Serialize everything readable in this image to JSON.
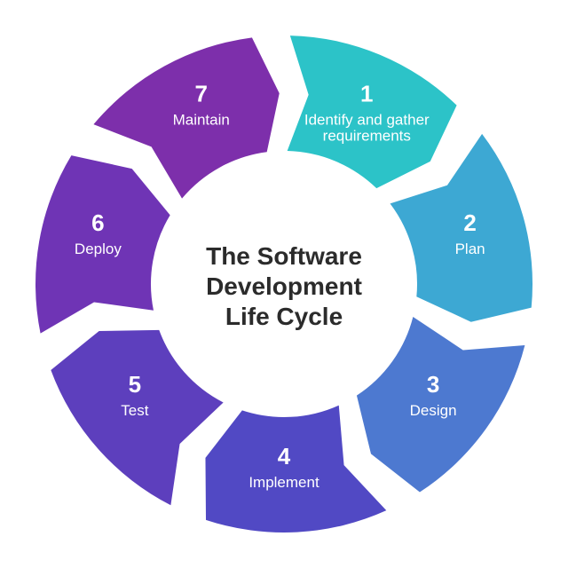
{
  "diagram": {
    "type": "cycle-arrow-ring",
    "center_title": [
      "The Software",
      "Development",
      "Life Cycle"
    ],
    "title_fontsize": 28,
    "title_color": "#2b2b2b",
    "background_color": "#ffffff",
    "canvas_size": 640,
    "outer_radius": 280,
    "inner_radius": 150,
    "gap_deg": 2.8,
    "arrow_notch_deg": 6,
    "start_angle_deg": -90,
    "segments": [
      {
        "number": "1",
        "label": [
          "Identify and gather",
          "requirements"
        ],
        "color": "#2cc3c8"
      },
      {
        "number": "2",
        "label": [
          "Plan"
        ],
        "color": "#3da8d3"
      },
      {
        "number": "3",
        "label": [
          "Design"
        ],
        "color": "#4d79d0"
      },
      {
        "number": "4",
        "label": [
          "Implement"
        ],
        "color": "#5149c4"
      },
      {
        "number": "5",
        "label": [
          "Test"
        ],
        "color": "#5d3fbd"
      },
      {
        "number": "6",
        "label": [
          "Deploy"
        ],
        "color": "#6f34b5"
      },
      {
        "number": "7",
        "label": [
          "Maintain"
        ],
        "color": "#7d2fab"
      }
    ],
    "number_fontsize": 26,
    "label_fontsize": 17,
    "label_color": "#ffffff"
  }
}
